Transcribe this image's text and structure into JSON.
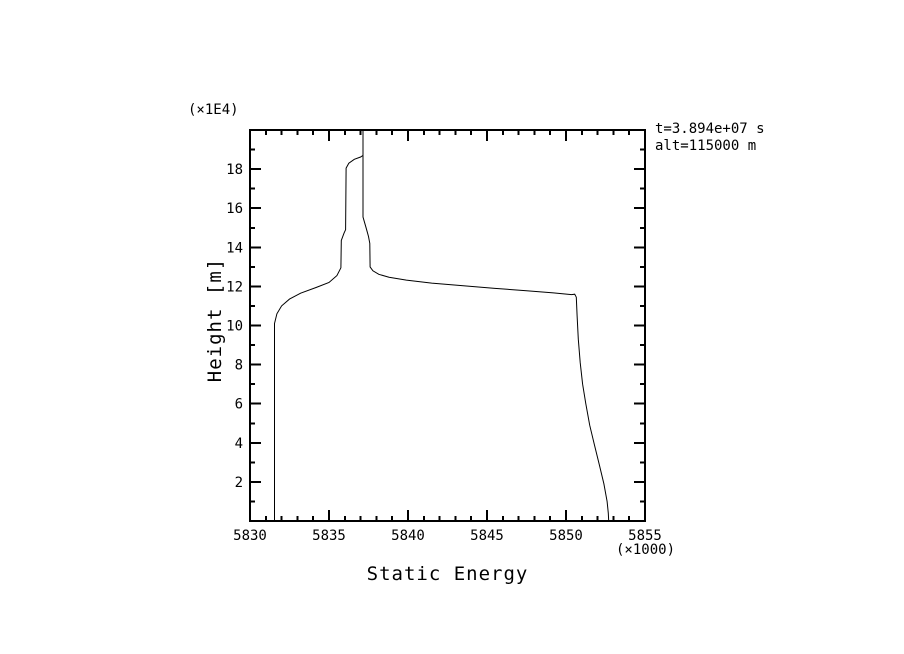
{
  "chart_data": {
    "type": "line",
    "title": "",
    "xlabel": "Static Energy",
    "ylabel": "Height [m]",
    "x_multiplier_label": "(×1000)",
    "y_multiplier_label": "(×1E4)",
    "xlim": [
      5830,
      5855
    ],
    "ylim": [
      0,
      20
    ],
    "x_major_ticks": [
      5830,
      5835,
      5840,
      5845,
      5850,
      5855
    ],
    "x_minor_step": 1,
    "y_major_ticks": [
      2,
      4,
      6,
      8,
      10,
      12,
      14,
      16,
      18
    ],
    "y_minor_step": 1,
    "grid": false,
    "frame": true,
    "ticks_inward": true,
    "background": "#ffffff",
    "line_color": "#000000",
    "annotations": [
      "t=3.894e+07 s",
      "alt=115000 m"
    ],
    "series": [
      {
        "name": "static-energy-profile",
        "points": [
          [
            5831.55,
            0.0
          ],
          [
            5831.55,
            10.1
          ],
          [
            5831.7,
            10.6
          ],
          [
            5832.0,
            11.0
          ],
          [
            5832.5,
            11.35
          ],
          [
            5833.2,
            11.65
          ],
          [
            5834.2,
            11.95
          ],
          [
            5835.0,
            12.2
          ],
          [
            5835.5,
            12.55
          ],
          [
            5835.75,
            12.95
          ],
          [
            5835.78,
            14.35
          ],
          [
            5835.95,
            14.72
          ],
          [
            5836.05,
            14.9
          ],
          [
            5836.08,
            18.05
          ],
          [
            5836.25,
            18.3
          ],
          [
            5836.6,
            18.5
          ],
          [
            5837.0,
            18.62
          ],
          [
            5837.15,
            18.7
          ],
          [
            5837.15,
            20.0
          ],
          [
            5837.15,
            15.55
          ],
          [
            5837.35,
            15.0
          ],
          [
            5837.5,
            14.55
          ],
          [
            5837.58,
            14.2
          ],
          [
            5837.6,
            13.0
          ],
          [
            5837.78,
            12.8
          ],
          [
            5838.15,
            12.62
          ],
          [
            5838.8,
            12.47
          ],
          [
            5839.9,
            12.32
          ],
          [
            5841.5,
            12.17
          ],
          [
            5843.5,
            12.03
          ],
          [
            5845.5,
            11.9
          ],
          [
            5847.5,
            11.78
          ],
          [
            5849.2,
            11.67
          ],
          [
            5850.35,
            11.58
          ],
          [
            5850.55,
            11.6
          ],
          [
            5850.65,
            11.45
          ],
          [
            5850.7,
            10.5
          ],
          [
            5850.78,
            9.3
          ],
          [
            5850.9,
            8.1
          ],
          [
            5851.05,
            7.0
          ],
          [
            5851.25,
            6.0
          ],
          [
            5851.5,
            4.9
          ],
          [
            5851.8,
            3.9
          ],
          [
            5852.1,
            2.9
          ],
          [
            5852.4,
            1.9
          ],
          [
            5852.6,
            1.0
          ],
          [
            5852.68,
            0.4
          ],
          [
            5852.7,
            0.0
          ]
        ]
      }
    ]
  }
}
